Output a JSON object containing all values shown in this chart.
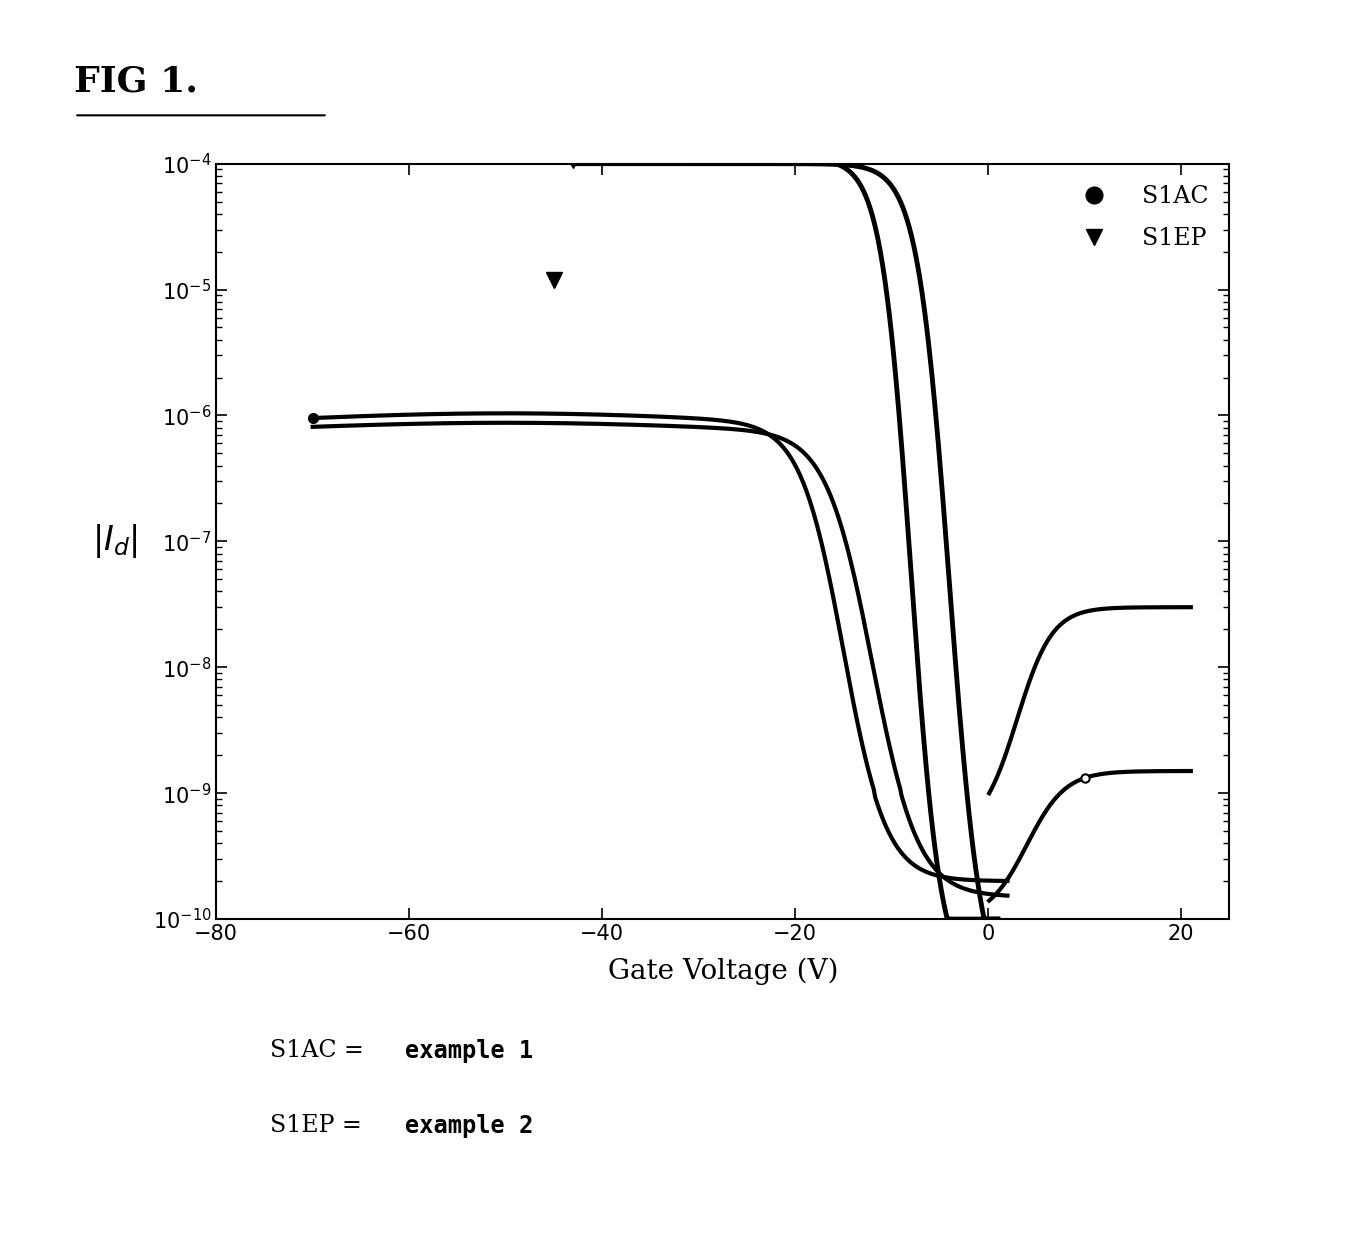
{
  "title": "FIG 1.",
  "xlabel": "Gate Voltage (V)",
  "xlim": [
    -80,
    25
  ],
  "ylim_log": [
    -10,
    -4
  ],
  "xticks": [
    -80,
    -60,
    -40,
    -20,
    0,
    20
  ],
  "background_color": "#ffffff",
  "line_color": "#000000",
  "line_width": 3.0,
  "annotation_s1ac": "S1AC = ",
  "annotation_s1ep": "S1EP = ",
  "example1": "example 1",
  "example2": "example 2"
}
